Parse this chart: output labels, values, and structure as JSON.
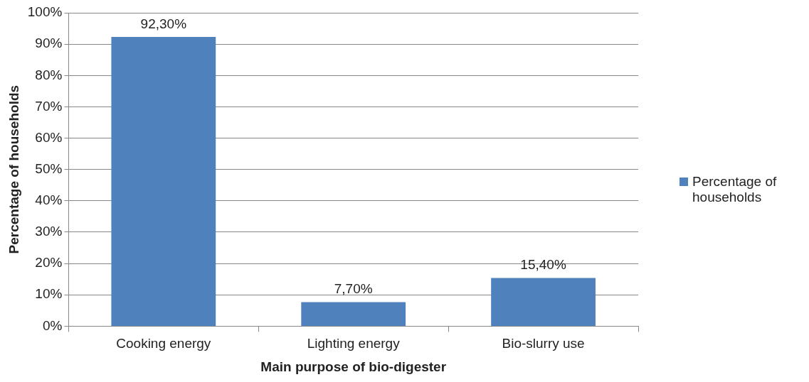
{
  "chart_data": {
    "type": "bar",
    "xlabel": "Main purpose of bio-digester",
    "ylabel": "Percentage of households",
    "categories": [
      "Cooking energy",
      "Lighting energy",
      "Bio-slurry use"
    ],
    "series": [
      {
        "name": "Percentage of households",
        "color": "#4f81bd",
        "values": [
          92.3,
          7.7,
          15.4
        ],
        "value_labels": [
          "92,30%",
          "7,70%",
          "15,40%"
        ]
      }
    ],
    "ylim": [
      0,
      100
    ],
    "yticks": [
      {
        "value": 0,
        "label": "0%"
      },
      {
        "value": 10,
        "label": "10%"
      },
      {
        "value": 20,
        "label": "20%"
      },
      {
        "value": 30,
        "label": "30%"
      },
      {
        "value": 40,
        "label": "40%"
      },
      {
        "value": 50,
        "label": "50%"
      },
      {
        "value": 60,
        "label": "60%"
      },
      {
        "value": 70,
        "label": "70%"
      },
      {
        "value": 80,
        "label": "80%"
      },
      {
        "value": 90,
        "label": "90%"
      },
      {
        "value": 100,
        "label": "100%"
      }
    ],
    "grid": "y",
    "legend": "right"
  }
}
